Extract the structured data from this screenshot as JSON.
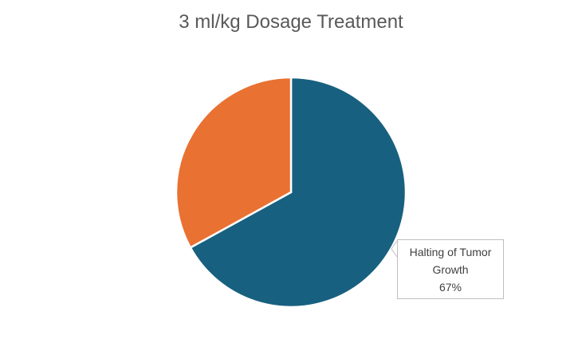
{
  "chart_data": {
    "type": "pie",
    "title": "3 ml/kg Dosage Treatment",
    "slices": [
      {
        "label": "Halting of Tumor Growth",
        "value": 67,
        "color": "#18607F"
      },
      {
        "label": "",
        "value": 33,
        "color": "#E97132"
      }
    ],
    "data_label": {
      "label": "Halting of Tumor Growth",
      "percent": "67%"
    }
  }
}
